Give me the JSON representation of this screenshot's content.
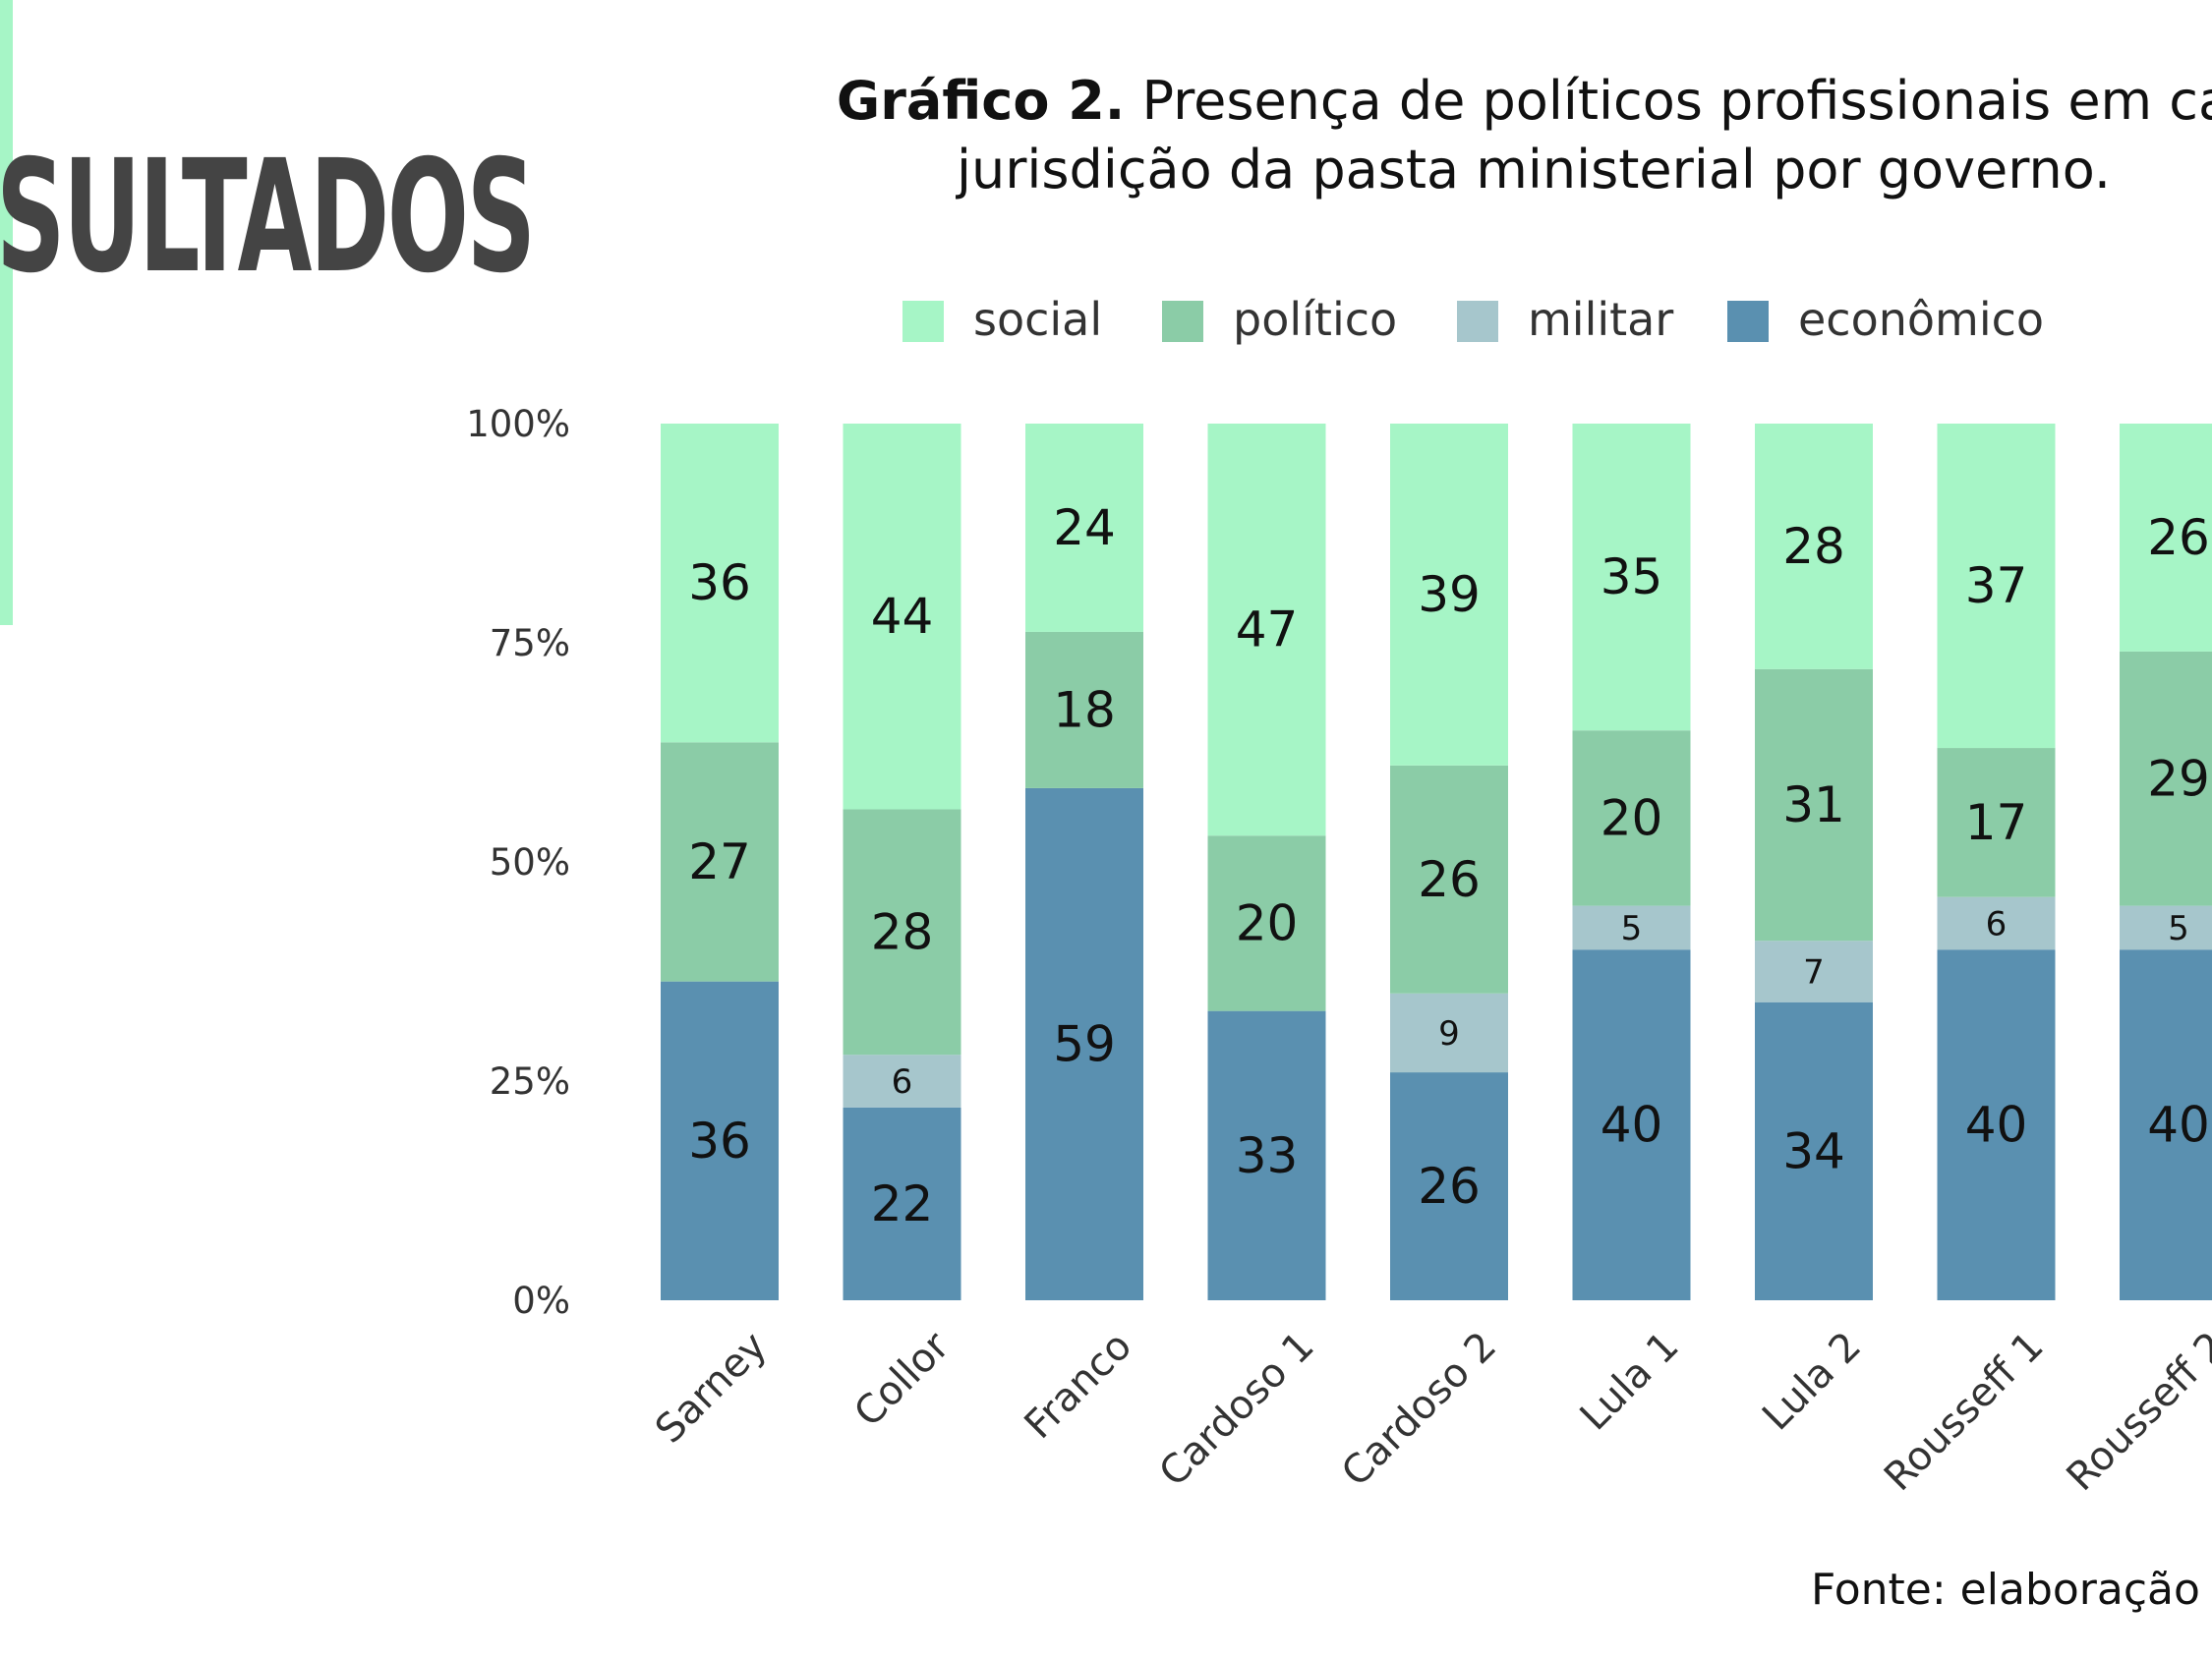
{
  "heading": "SULTADOS",
  "title": {
    "lead": "Gráfico 2.",
    "line1_rest": " Presença de políticos profissionais em ca",
    "line2": "jurisdição da pasta ministerial por governo."
  },
  "source": "Fonte: elaboração",
  "colors": {
    "accent": "#a6f5c6",
    "social": "#a6f5c6",
    "politico": "#8bcca7",
    "militar": "#a6c6cc",
    "economico": "#5a90b0"
  },
  "chart_data": {
    "type": "bar",
    "stacked": true,
    "percent": true,
    "categories": [
      "Sarney",
      "Collor",
      "Franco",
      "Cardoso 1",
      "Cardoso 2",
      "Lula 1",
      "Lula 2",
      "Rousseff 1",
      "Rousseff 2"
    ],
    "series": [
      {
        "name": "econômico",
        "color": "#5a90b0",
        "values": [
          36,
          22,
          59,
          33,
          26,
          40,
          34,
          40,
          40
        ]
      },
      {
        "name": "militar",
        "color": "#a6c6cc",
        "values": [
          0,
          6,
          0,
          0,
          9,
          5,
          7,
          6,
          5
        ]
      },
      {
        "name": "político",
        "color": "#8bcca7",
        "values": [
          27,
          28,
          18,
          20,
          26,
          20,
          31,
          17,
          29
        ]
      },
      {
        "name": "social",
        "color": "#a6f5c6",
        "values": [
          36,
          44,
          24,
          47,
          39,
          35,
          28,
          37,
          26
        ]
      }
    ],
    "legend": [
      "social",
      "político",
      "militar",
      "econômico"
    ],
    "legend_position": "top",
    "yticks": [
      "0%",
      "25%",
      "50%",
      "75%",
      "100%"
    ],
    "ylim": [
      0,
      100
    ]
  }
}
